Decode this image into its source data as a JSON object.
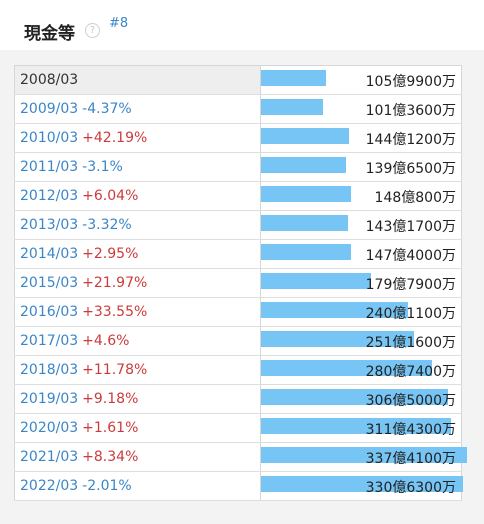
{
  "header": {
    "title": "現金等",
    "help_icon": "?",
    "rank": "#8"
  },
  "colors": {
    "bar": "#76c5f5",
    "increase": "#cc3b3b",
    "decrease": "#3a86c8",
    "year_link": "#3a86c8"
  },
  "rows": [
    {
      "year": "2008/03",
      "change": "",
      "direction": "none",
      "amount": "105億9900万",
      "value": 10599
    },
    {
      "year": "2009/03",
      "change": "-4.37%",
      "direction": "down",
      "amount": "101億3600万",
      "value": 10136
    },
    {
      "year": "2010/03",
      "change": "+42.19%",
      "direction": "up",
      "amount": "144億1200万",
      "value": 14412
    },
    {
      "year": "2011/03",
      "change": "-3.1%",
      "direction": "down",
      "amount": "139億6500万",
      "value": 13965
    },
    {
      "year": "2012/03",
      "change": "+6.04%",
      "direction": "up",
      "amount": "148億800万",
      "value": 14808
    },
    {
      "year": "2013/03",
      "change": "-3.32%",
      "direction": "down",
      "amount": "143億1700万",
      "value": 14317
    },
    {
      "year": "2014/03",
      "change": "+2.95%",
      "direction": "up",
      "amount": "147億4000万",
      "value": 14740
    },
    {
      "year": "2015/03",
      "change": "+21.97%",
      "direction": "up",
      "amount": "179億7900万",
      "value": 17979
    },
    {
      "year": "2016/03",
      "change": "+33.55%",
      "direction": "up",
      "amount": "240億1100万",
      "value": 24011
    },
    {
      "year": "2017/03",
      "change": "+4.6%",
      "direction": "up",
      "amount": "251億1600万",
      "value": 25116
    },
    {
      "year": "2018/03",
      "change": "+11.78%",
      "direction": "up",
      "amount": "280億7400万",
      "value": 28074
    },
    {
      "year": "2019/03",
      "change": "+9.18%",
      "direction": "up",
      "amount": "306億5000万",
      "value": 30650
    },
    {
      "year": "2020/03",
      "change": "+1.61%",
      "direction": "up",
      "amount": "311億4300万",
      "value": 31143
    },
    {
      "year": "2021/03",
      "change": "+8.34%",
      "direction": "up",
      "amount": "337億4100万",
      "value": 33741
    },
    {
      "year": "2022/03",
      "change": "-2.01%",
      "direction": "down",
      "amount": "330億6300万",
      "value": 33063
    }
  ]
}
